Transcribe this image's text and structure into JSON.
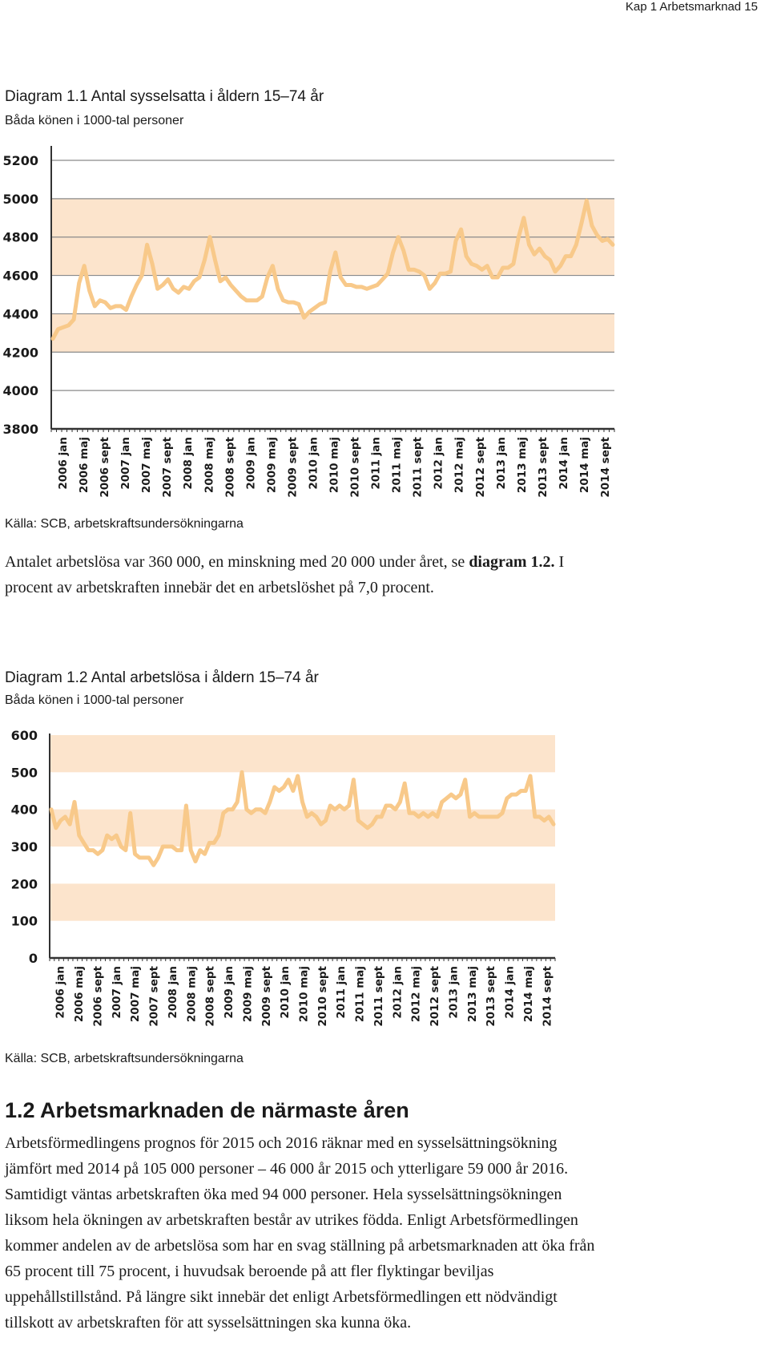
{
  "page_header": "Kap 1 Arbetsmarknad  15",
  "diagram1": {
    "title": "Diagram 1.1  Antal sysselsatta i åldern 15–74 år",
    "subtitle": "Båda könen i 1000-tal personer",
    "source": "Källa: SCB, arbetskraftsundersökningarna"
  },
  "paragraph1": {
    "part1": "Antalet arbetslösa var 360 000, en minskning med 20 000 under året, se ",
    "bold": "diagram 1.2.",
    "part2": " I procent av arbetskraften innebär det en arbetslöshet på 7,0 procent."
  },
  "diagram2": {
    "title": "Diagram 1.2  Antal arbetslösa i åldern 15–74 år",
    "subtitle": "Båda könen i 1000-tal personer",
    "source": "Källa: SCB, arbetskraftsundersökningarna"
  },
  "section": {
    "heading": "1.2  Arbetsmarknaden de närmaste åren",
    "body": "Arbetsförmedlingens prognos för 2015 och 2016 räknar med en sysselsättningsökning jämfört med 2014 på 105 000 personer – 46 000 år 2015 och ytterligare 59 000 år 2016. Samtidigt väntas arbetskraften öka med 94 000 personer. Hela sysselsättningsökningen liksom hela ökningen av arbetskraften består av utrikes födda. Enligt Arbetsförmedlingen kommer andelen av de arbetslösa som har en svag ställning på arbetsmarknaden att öka från 65 procent till 75 procent, i huvudsak beroende på att fler flyktingar beviljas uppehållstillstånd. På längre sikt innebär det enligt Arbetsförmedlingen ett nödvändigt tillskott av arbetskraften för att sysselsättningen ska kunna öka."
  },
  "colors": {
    "band": "#fce4cc",
    "line": "#f8c98a",
    "grid": "#8a8a8a",
    "axis": "#333333",
    "text": "#1a1a1a"
  },
  "chart_data": [
    {
      "type": "line",
      "title": "Diagram 1.1  Antal sysselsatta i åldern 15–74 år",
      "subtitle": "Båda könen i 1000-tal personer",
      "x_tick_labels": [
        "2006 jan",
        "2006 maj",
        "2006 sept",
        "2007 jan",
        "2007 maj",
        "2007 sept",
        "2008 jan",
        "2008 maj",
        "2008 sept",
        "2009 jan",
        "2009 maj",
        "2009 sept",
        "2010 jan",
        "2010 maj",
        "2010 sept",
        "2011 jan",
        "2011 maj",
        "2011 sept",
        "2012 jan",
        "2012 maj",
        "2012 sept",
        "2013 jan",
        "2013 maj",
        "2013 sept",
        "2014 jan",
        "2014 maj",
        "2014 sept"
      ],
      "y_ticks": [
        "5200",
        "5000",
        "4800",
        "4600",
        "4400",
        "4200",
        "4000",
        "3800"
      ],
      "ylim": [
        3800,
        5200
      ],
      "bands": [
        [
          4200,
          4400
        ],
        [
          4600,
          4800
        ],
        [
          4800,
          5000
        ]
      ],
      "grid": true,
      "series": [
        {
          "values": [
            4270,
            4320,
            4330,
            4340,
            4370,
            4560,
            4650,
            4520,
            4440,
            4470,
            4460,
            4430,
            4440,
            4440,
            4420,
            4490,
            4550,
            4600,
            4760,
            4660,
            4530,
            4550,
            4580,
            4530,
            4510,
            4540,
            4530,
            4570,
            4590,
            4680,
            4800,
            4680,
            4570,
            4590,
            4550,
            4520,
            4490,
            4470,
            4470,
            4470,
            4490,
            4590,
            4650,
            4530,
            4470,
            4460,
            4460,
            4450,
            4380,
            4410,
            4430,
            4450,
            4460,
            4620,
            4720,
            4590,
            4550,
            4550,
            4540,
            4540,
            4530,
            4540,
            4550,
            4580,
            4610,
            4720,
            4800,
            4730,
            4630,
            4630,
            4620,
            4600,
            4530,
            4560,
            4610,
            4610,
            4620,
            4780,
            4840,
            4700,
            4660,
            4650,
            4630,
            4650,
            4590,
            4590,
            4640,
            4640,
            4660,
            4800,
            4900,
            4760,
            4710,
            4740,
            4700,
            4680,
            4620,
            4650,
            4700,
            4700,
            4760,
            4870,
            4990,
            4860,
            4810,
            4780,
            4790,
            4760
          ]
        }
      ]
    },
    {
      "type": "line",
      "title": "Diagram 1.2  Antal arbetslösa i åldern 15–74 år",
      "subtitle": "Båda könen i 1000-tal personer",
      "x_tick_labels": [
        "2006 jan",
        "2006 maj",
        "2006 sept",
        "2007 jan",
        "2007 maj",
        "2007 sept",
        "2008 jan",
        "2008 maj",
        "2008 sept",
        "2009 jan",
        "2009 maj",
        "2009 sept",
        "2010 jan",
        "2010 maj",
        "2010 sept",
        "2011 jan",
        "2011 maj",
        "2011 sept",
        "2012 jan",
        "2012 maj",
        "2012 sept",
        "2013 jan",
        "2013 maj",
        "2013 sept",
        "2014 jan",
        "2014 maj",
        "2014 sept"
      ],
      "y_ticks": [
        "600",
        "500",
        "400",
        "300",
        "200",
        "100",
        "0"
      ],
      "ylim": [
        0,
        600
      ],
      "bands": [
        [
          100,
          200
        ],
        [
          300,
          400
        ],
        [
          500,
          600
        ]
      ],
      "grid": false,
      "series": [
        {
          "values": [
            400,
            350,
            370,
            380,
            360,
            420,
            330,
            310,
            290,
            290,
            280,
            290,
            330,
            320,
            330,
            300,
            290,
            390,
            280,
            270,
            270,
            270,
            250,
            270,
            300,
            300,
            300,
            290,
            290,
            410,
            290,
            260,
            290,
            280,
            310,
            310,
            330,
            390,
            400,
            400,
            420,
            500,
            400,
            390,
            400,
            400,
            390,
            420,
            460,
            450,
            460,
            480,
            450,
            490,
            420,
            380,
            390,
            380,
            360,
            370,
            410,
            400,
            410,
            400,
            410,
            480,
            370,
            360,
            350,
            360,
            380,
            380,
            410,
            410,
            400,
            420,
            470,
            390,
            390,
            380,
            390,
            380,
            390,
            380,
            420,
            430,
            440,
            430,
            440,
            480,
            380,
            390,
            380,
            380,
            380,
            380,
            380,
            390,
            430,
            440,
            440,
            450,
            450,
            490,
            380,
            380,
            370,
            380,
            360
          ]
        }
      ]
    }
  ]
}
